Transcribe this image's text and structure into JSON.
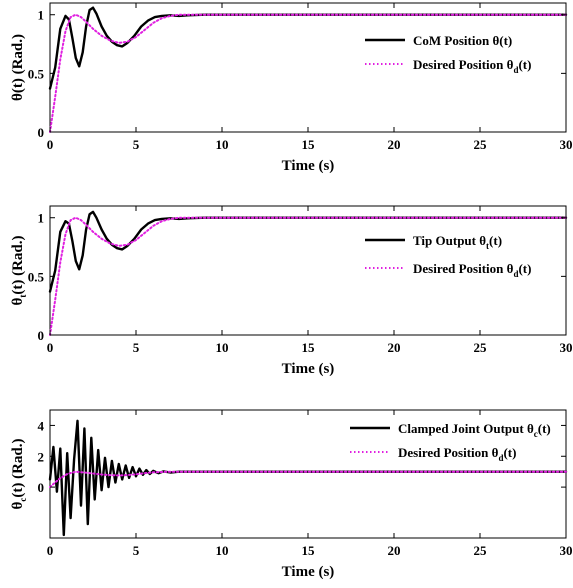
{
  "chart_data": [
    {
      "type": "line",
      "xlabel": "Time (s)",
      "ylabel": {
        "main": "θ",
        "sub": "",
        "rest": "(t) (Rad.)"
      },
      "xlim": [
        0,
        30
      ],
      "ylim": [
        0,
        1.1
      ],
      "xticks": [
        "0",
        "5",
        "10",
        "15",
        "20",
        "25",
        "30"
      ],
      "yticks": [
        "0",
        "0.5",
        "1"
      ],
      "ytick_values": [
        0,
        0.5,
        1
      ],
      "legend_position": "right",
      "grid": false,
      "series": [
        {
          "name": {
            "main": "CoM Position θ",
            "sub": "",
            "rest": "(t)"
          },
          "color": "#000000",
          "style": "solid",
          "x": [
            0,
            0.3,
            0.6,
            0.9,
            1.1,
            1.3,
            1.5,
            1.7,
            1.9,
            2.1,
            2.3,
            2.5,
            2.7,
            3.0,
            3.3,
            3.6,
            3.9,
            4.2,
            4.5,
            4.9,
            5.3,
            5.7,
            6.1,
            6.5,
            7.0,
            7.5,
            8.0,
            9.0,
            10.0,
            12.0,
            15.0,
            20.0,
            25.0,
            30.0
          ],
          "y": [
            0.37,
            0.55,
            0.88,
            0.99,
            0.96,
            0.8,
            0.63,
            0.56,
            0.68,
            0.9,
            1.04,
            1.06,
            1.01,
            0.9,
            0.82,
            0.77,
            0.74,
            0.73,
            0.76,
            0.82,
            0.9,
            0.95,
            0.98,
            0.99,
            0.995,
            0.99,
            0.995,
            1.0,
            1.0,
            1.0,
            1.0,
            1.0,
            1.0,
            1.0
          ]
        },
        {
          "name": {
            "main": "Desired Position θ",
            "sub": "d",
            "rest": "(t)"
          },
          "color": "#e020e0",
          "style": "dotted",
          "x": [
            0,
            0.3,
            0.6,
            0.9,
            1.2,
            1.5,
            1.8,
            2.1,
            2.5,
            3.0,
            3.5,
            4.0,
            4.5,
            5.0,
            5.5,
            6.0,
            6.5,
            7.0,
            7.5,
            8.0,
            9.0,
            10.0,
            12.0,
            15.0,
            20.0,
            25.0,
            30.0
          ],
          "y": [
            0.0,
            0.3,
            0.62,
            0.86,
            0.98,
            1.0,
            0.98,
            0.94,
            0.88,
            0.82,
            0.78,
            0.76,
            0.77,
            0.81,
            0.87,
            0.93,
            0.97,
            0.99,
            1.0,
            1.0,
            1.0,
            1.0,
            1.0,
            1.0,
            1.0,
            1.0,
            1.0
          ]
        }
      ]
    },
    {
      "type": "line",
      "xlabel": "Time (s)",
      "ylabel": {
        "main": "θ",
        "sub": "t",
        "rest": "(t) (Rad.)"
      },
      "xlim": [
        0,
        30
      ],
      "ylim": [
        0,
        1.1
      ],
      "xticks": [
        "0",
        "5",
        "10",
        "15",
        "20",
        "25",
        "30"
      ],
      "yticks": [
        "0",
        "0.5",
        "1"
      ],
      "ytick_values": [
        0,
        0.5,
        1
      ],
      "legend_position": "right",
      "grid": false,
      "series": [
        {
          "name": {
            "main": "Tip Output θ",
            "sub": "t",
            "rest": "(t)"
          },
          "color": "#000000",
          "style": "solid",
          "x": [
            0,
            0.3,
            0.6,
            0.9,
            1.1,
            1.3,
            1.5,
            1.7,
            1.9,
            2.1,
            2.3,
            2.5,
            2.7,
            3.0,
            3.3,
            3.6,
            3.9,
            4.2,
            4.5,
            4.9,
            5.3,
            5.7,
            6.1,
            6.5,
            7.0,
            7.5,
            8.0,
            9.0,
            10.0,
            12.0,
            15.0,
            20.0,
            25.0,
            30.0
          ],
          "y": [
            0.37,
            0.55,
            0.88,
            0.97,
            0.95,
            0.8,
            0.63,
            0.56,
            0.68,
            0.9,
            1.03,
            1.05,
            1.0,
            0.9,
            0.82,
            0.77,
            0.74,
            0.73,
            0.76,
            0.82,
            0.9,
            0.95,
            0.98,
            0.99,
            0.995,
            0.99,
            0.995,
            1.0,
            1.0,
            1.0,
            1.0,
            1.0,
            1.0,
            1.0
          ]
        },
        {
          "name": {
            "main": "Desired Position θ",
            "sub": "d",
            "rest": "(t)"
          },
          "color": "#e020e0",
          "style": "dotted",
          "x": [
            0,
            0.3,
            0.6,
            0.9,
            1.2,
            1.5,
            1.8,
            2.1,
            2.5,
            3.0,
            3.5,
            4.0,
            4.5,
            5.0,
            5.5,
            6.0,
            6.5,
            7.0,
            7.5,
            8.0,
            9.0,
            10.0,
            12.0,
            15.0,
            20.0,
            25.0,
            30.0
          ],
          "y": [
            0.0,
            0.3,
            0.62,
            0.86,
            0.98,
            1.0,
            0.98,
            0.94,
            0.88,
            0.82,
            0.78,
            0.76,
            0.77,
            0.81,
            0.87,
            0.93,
            0.97,
            0.99,
            1.0,
            1.0,
            1.0,
            1.0,
            1.0,
            1.0,
            1.0,
            1.0,
            1.0
          ]
        }
      ]
    },
    {
      "type": "line",
      "xlabel": "Time (s)",
      "ylabel": {
        "main": "θ",
        "sub": "c",
        "rest": "(t) (Rad.)"
      },
      "xlim": [
        0,
        30
      ],
      "ylim": [
        -3.3,
        5
      ],
      "xticks": [
        "0",
        "5",
        "10",
        "15",
        "20",
        "25",
        "30"
      ],
      "yticks": [
        "0",
        "2",
        "4"
      ],
      "ytick_values": [
        0,
        2,
        4
      ],
      "legend_position": "top-right",
      "grid": false,
      "series": [
        {
          "name": {
            "main": "Clamped Joint Output θ",
            "sub": "c",
            "rest": "(t)"
          },
          "color": "#000000",
          "style": "solid",
          "x": [
            0,
            0.2,
            0.4,
            0.6,
            0.8,
            1.0,
            1.2,
            1.4,
            1.6,
            1.8,
            2.0,
            2.2,
            2.4,
            2.6,
            2.8,
            3.0,
            3.2,
            3.4,
            3.6,
            3.8,
            4.0,
            4.2,
            4.4,
            4.6,
            4.8,
            5.0,
            5.2,
            5.4,
            5.6,
            5.8,
            6.0,
            6.3,
            6.6,
            7.0,
            7.5,
            8.0,
            9.0,
            10.0,
            15.0,
            20.0,
            25.0,
            30.0
          ],
          "y": [
            0.5,
            2.6,
            -0.3,
            2.5,
            -3.1,
            2.2,
            -2.0,
            1.8,
            4.3,
            -1.2,
            3.8,
            -2.4,
            3.2,
            -0.8,
            2.4,
            -0.2,
            1.9,
            0.0,
            1.7,
            0.3,
            1.5,
            0.5,
            1.4,
            0.6,
            1.3,
            0.7,
            1.2,
            0.8,
            1.1,
            0.85,
            1.05,
            0.9,
            1.02,
            0.95,
            1.0,
            1.0,
            1.0,
            1.0,
            1.0,
            1.0,
            1.0,
            1.0
          ]
        },
        {
          "name": {
            "main": "Desired Position θ",
            "sub": "d",
            "rest": "(t)"
          },
          "color": "#e020e0",
          "style": "dotted",
          "x": [
            0,
            0.5,
            1.0,
            1.5,
            2.0,
            2.5,
            3.0,
            3.5,
            4.0,
            4.5,
            5.0,
            5.5,
            6.0,
            7.0,
            8.0,
            10.0,
            15.0,
            20.0,
            25.0,
            30.0
          ],
          "y": [
            0.0,
            0.5,
            0.85,
            1.0,
            0.95,
            0.88,
            0.82,
            0.78,
            0.76,
            0.78,
            0.83,
            0.9,
            0.96,
            1.0,
            1.0,
            1.0,
            1.0,
            1.0,
            1.0,
            1.0
          ]
        }
      ]
    }
  ]
}
